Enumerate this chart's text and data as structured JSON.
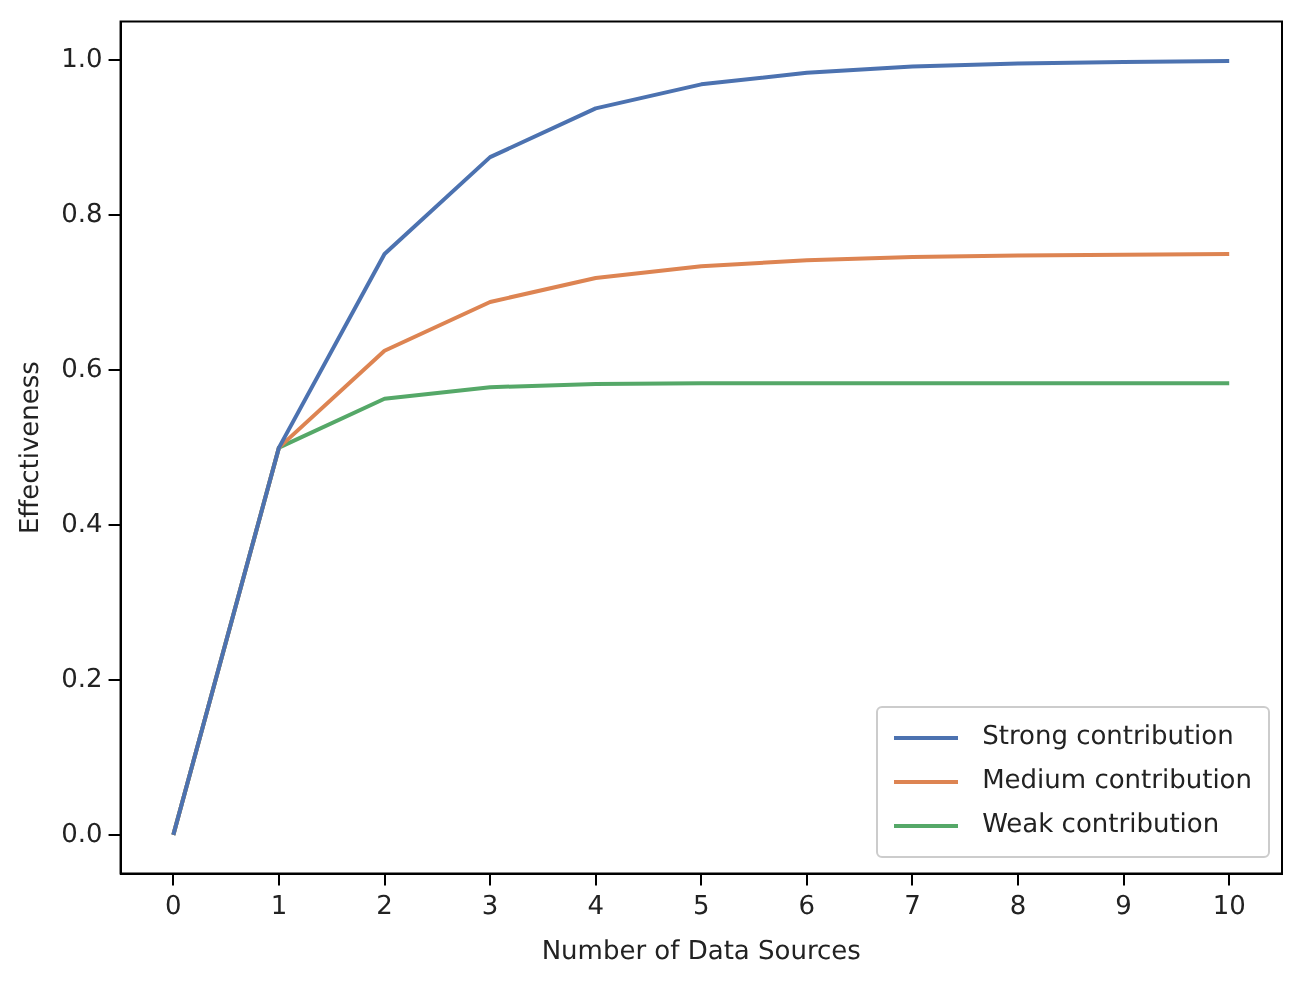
{
  "chart_data": {
    "type": "line",
    "xlabel": "Number of Data Sources",
    "ylabel": "Effectiveness",
    "x": [
      0,
      1,
      2,
      3,
      4,
      5,
      6,
      7,
      8,
      9,
      10
    ],
    "series": [
      {
        "name": "Strong contribution",
        "color": "#4c72b0",
        "values": [
          0,
          0.5,
          0.75,
          0.875,
          0.938,
          0.969,
          0.984,
          0.992,
          0.996,
          0.998,
          0.999
        ]
      },
      {
        "name": "Medium contribution",
        "color": "#dd8452",
        "values": [
          0,
          0.5,
          0.625,
          0.688,
          0.719,
          0.734,
          0.742,
          0.746,
          0.748,
          0.749,
          0.75
        ]
      },
      {
        "name": "Weak contribution",
        "color": "#55a868",
        "values": [
          0,
          0.5,
          0.563,
          0.578,
          0.582,
          0.583,
          0.583,
          0.583,
          0.583,
          0.583,
          0.583
        ]
      }
    ],
    "xlim": [
      -0.5,
      10.5
    ],
    "xticks": [
      0,
      1,
      2,
      3,
      4,
      5,
      6,
      7,
      8,
      9,
      10
    ],
    "ylim": [
      -0.05,
      1.05
    ],
    "yticks": [
      {
        "value": 0,
        "label": "0.0"
      },
      {
        "value": 0.2,
        "label": "0.2"
      },
      {
        "value": 0.4,
        "label": "0.4"
      },
      {
        "value": 0.6,
        "label": "0.6"
      },
      {
        "value": 0.8,
        "label": "0.8"
      },
      {
        "value": 1,
        "label": "1.0"
      }
    ],
    "legend": "bottom right",
    "grid": false,
    "marker": "none",
    "line_style": "solid"
  }
}
